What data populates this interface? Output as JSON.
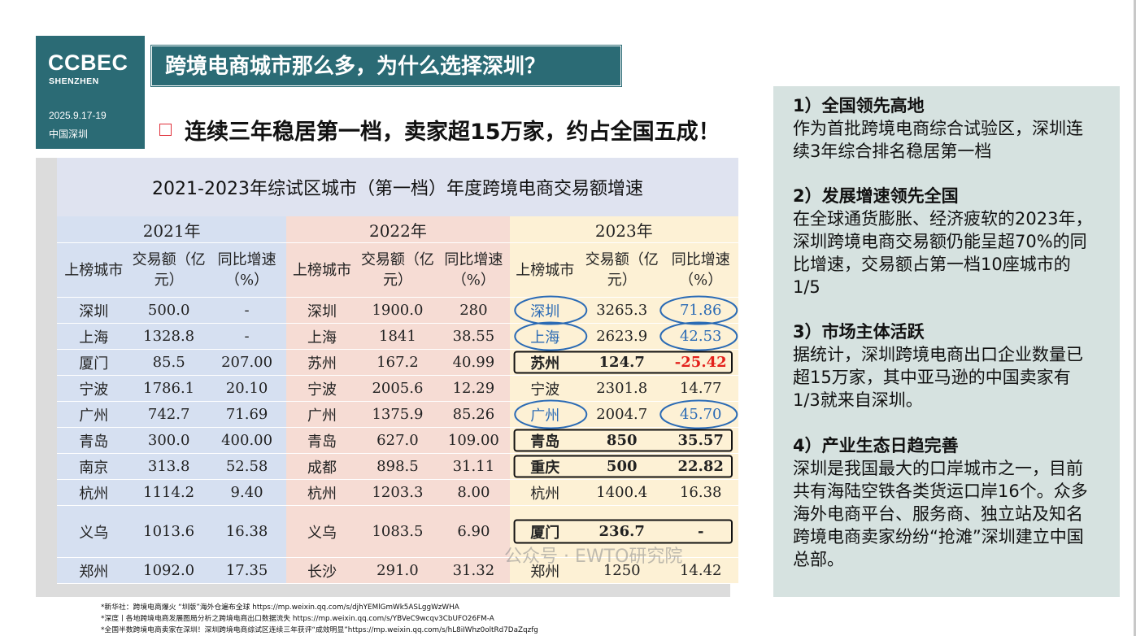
{
  "logo": {
    "brand": "CCBEC",
    "city": "SHENZHEN",
    "date": "2025.9.17-19",
    "location": "中国深圳"
  },
  "page_title": "跨境电商城市那么多，为什么选择深圳？",
  "headline": "连续三年稳居第一档，卖家超15万家，约占全国五成！",
  "table": {
    "title": "2021-2023年综试区城市（第一档）年度跨境电商交易额增速",
    "years": [
      "2021年",
      "2022年",
      "2023年"
    ],
    "headers": [
      [
        "上榜城市",
        "交易额（亿元）",
        "同比增速（%）"
      ],
      [
        "上榜城市",
        "交易额（亿元）",
        "同比增速（%）"
      ],
      [
        "上榜城市",
        "交易额（亿元）",
        "同比增速（%）"
      ]
    ],
    "rows": [
      [
        "深圳",
        "500.0",
        "-",
        "深圳",
        "1900.0",
        "280",
        "深圳",
        "3265.3",
        "71.86"
      ],
      [
        "上海",
        "1328.8",
        "-",
        "上海",
        "1841",
        "38.55",
        "上海",
        "2623.9",
        "42.53"
      ],
      [
        "厦门",
        "85.5",
        "207.00",
        "苏州",
        "167.2",
        "40.99",
        "苏州",
        "124.7",
        "-25.42"
      ],
      [
        "宁波",
        "1786.1",
        "20.10",
        "宁波",
        "2005.6",
        "12.29",
        "宁波",
        "2301.8",
        "14.77"
      ],
      [
        "广州",
        "742.7",
        "71.69",
        "广州",
        "1375.9",
        "85.26",
        "广州",
        "2004.7",
        "45.70"
      ],
      [
        "青岛",
        "300.0",
        "400.00",
        "青岛",
        "627.0",
        "109.00",
        "青岛",
        "850",
        "35.57"
      ],
      [
        "南京",
        "313.8",
        "52.58",
        "成都",
        "898.5",
        "31.11",
        "重庆",
        "500",
        "22.82"
      ],
      [
        "杭州",
        "1114.2",
        "9.40",
        "杭州",
        "1203.3",
        "8.00",
        "杭州",
        "1400.4",
        "16.38"
      ],
      [
        "义乌",
        "1013.6",
        "16.38",
        "义乌",
        "1083.5",
        "6.90",
        "厦门",
        "236.7",
        "-"
      ],
      [
        "郑州",
        "1092.0",
        "17.35",
        "长沙",
        "291.0",
        "31.32",
        "郑州",
        "1250",
        "14.42"
      ]
    ],
    "circled_rows_2023": [
      0,
      1,
      4
    ],
    "boxed_rows_2023": [
      2,
      5,
      6,
      8
    ],
    "colors": {
      "col2021": "#d6e0f1",
      "col2022": "#f6dcd4",
      "col2023": "#fdf1d5",
      "highlight_blue": "#2b6bb5",
      "negative_red": "#e3201b"
    }
  },
  "sources": [
    "*新华社：跨境电商爆火 “圳版”海外仓遍布全球 https://mp.weixin.qq.com/s/djhYEMlGmWk5ASLggWzWHA",
    "*深度丨各地跨境电商发展图局分析之跨境电商出口数据流失 https://mp.weixin.qq.com/s/YBVeC9wcqv3CbUFO26FM-A",
    "*全国半数跨境电商卖家在深圳！深圳跨境电商综试区连续三年获评“成效明显”https://mp.weixin.qq.com/s/hL8iIWhz0oltRd7DaZqzfg"
  ],
  "sidebar": [
    {
      "heading": "1）全国领先高地",
      "body": "作为首批跨境电商综合试验区，深圳连续3年综合排名稳居第一档"
    },
    {
      "heading": "2）发展增速领先全国",
      "body": "在全球通货膨胀、经济疲软的2023年，深圳跨境电商交易额仍能呈超70%的同比增速，交易额占第一档10座城市的1/5"
    },
    {
      "heading": "3）市场主体活跃",
      "body": "据统计，深圳跨境电商出口企业数量已超15万家，其中亚马逊的中国卖家有1/3就来自深圳。"
    },
    {
      "heading": "4）产业生态日趋完善",
      "body": "深圳是我国最大的口岸城市之一，目前共有海陆空铁各类货运口岸16个。众多海外电商平台、服务商、独立站及知名跨境电商卖家纷纷“抢滩”深圳建立中国总部。"
    }
  ],
  "watermark": "公众号 · EWTO研究院"
}
